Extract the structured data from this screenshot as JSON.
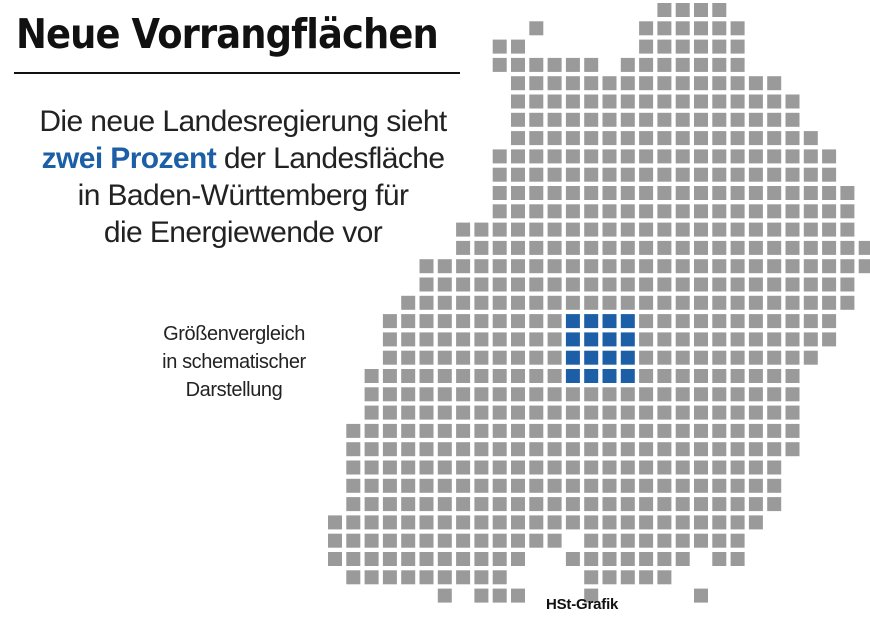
{
  "header": {
    "title": "Neue Vorrangflächen"
  },
  "lead": {
    "line1": "Die neue Landesregierung sieht",
    "highlight": "zwei Prozent",
    "line2_rest": " der Landesfläche",
    "line3": "in Baden-Württemberg für",
    "line4": "die Energiewende vor"
  },
  "note": {
    "line1": "Größenvergleich",
    "line2": "in schematischer",
    "line3": "Darstellung"
  },
  "credit": "HSt-Grafik",
  "colors": {
    "map_cell": "#9a9a9a",
    "highlight_cell": "#1c5fa6",
    "text": "#222222",
    "title": "#111111"
  }
}
